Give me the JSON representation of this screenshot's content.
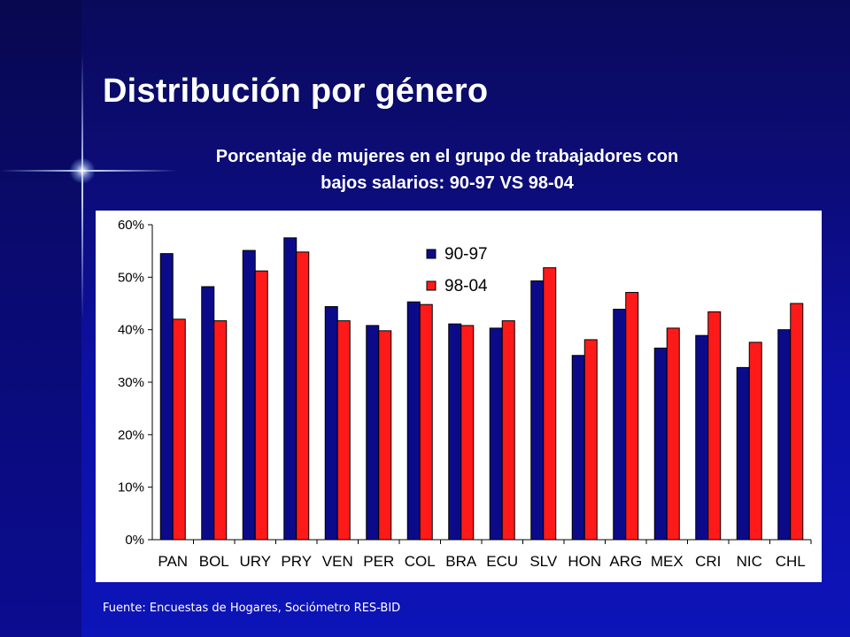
{
  "header": {
    "title": "Distribución por género",
    "subtitle_line1": "Porcentaje de mujeres en el grupo de trabajadores con",
    "subtitle_line2": "bajos salarios: 90-97 VS 98-04"
  },
  "footer": {
    "source": "Fuente: Encuestas de Hogares, Sociómetro RES-BID"
  },
  "colors": {
    "series_90_97": "#0b0b8a",
    "series_98_04": "#ff1a1a",
    "background": "#0c0c78"
  },
  "chart_data": {
    "type": "bar",
    "categories": [
      "PAN",
      "BOL",
      "URY",
      "PRY",
      "VEN",
      "PER",
      "COL",
      "BRA",
      "ECU",
      "SLV",
      "HON",
      "ARG",
      "MEX",
      "CRI",
      "NIC",
      "CHL"
    ],
    "series": [
      {
        "name": "90-97",
        "values": [
          54.5,
          48.2,
          55.1,
          57.5,
          44.4,
          40.8,
          45.3,
          41.1,
          40.3,
          49.3,
          35.1,
          43.9,
          36.5,
          38.9,
          32.8,
          40.0
        ]
      },
      {
        "name": "98-04",
        "values": [
          42.0,
          41.7,
          51.2,
          54.8,
          41.7,
          39.8,
          44.8,
          40.8,
          41.7,
          51.8,
          38.1,
          47.1,
          40.3,
          43.4,
          37.6,
          45.0
        ]
      }
    ],
    "yticks": [
      "0%",
      "10%",
      "20%",
      "30%",
      "40%",
      "50%",
      "60%"
    ],
    "ylim": [
      0,
      60
    ],
    "legend": "top-center",
    "grid": false
  }
}
